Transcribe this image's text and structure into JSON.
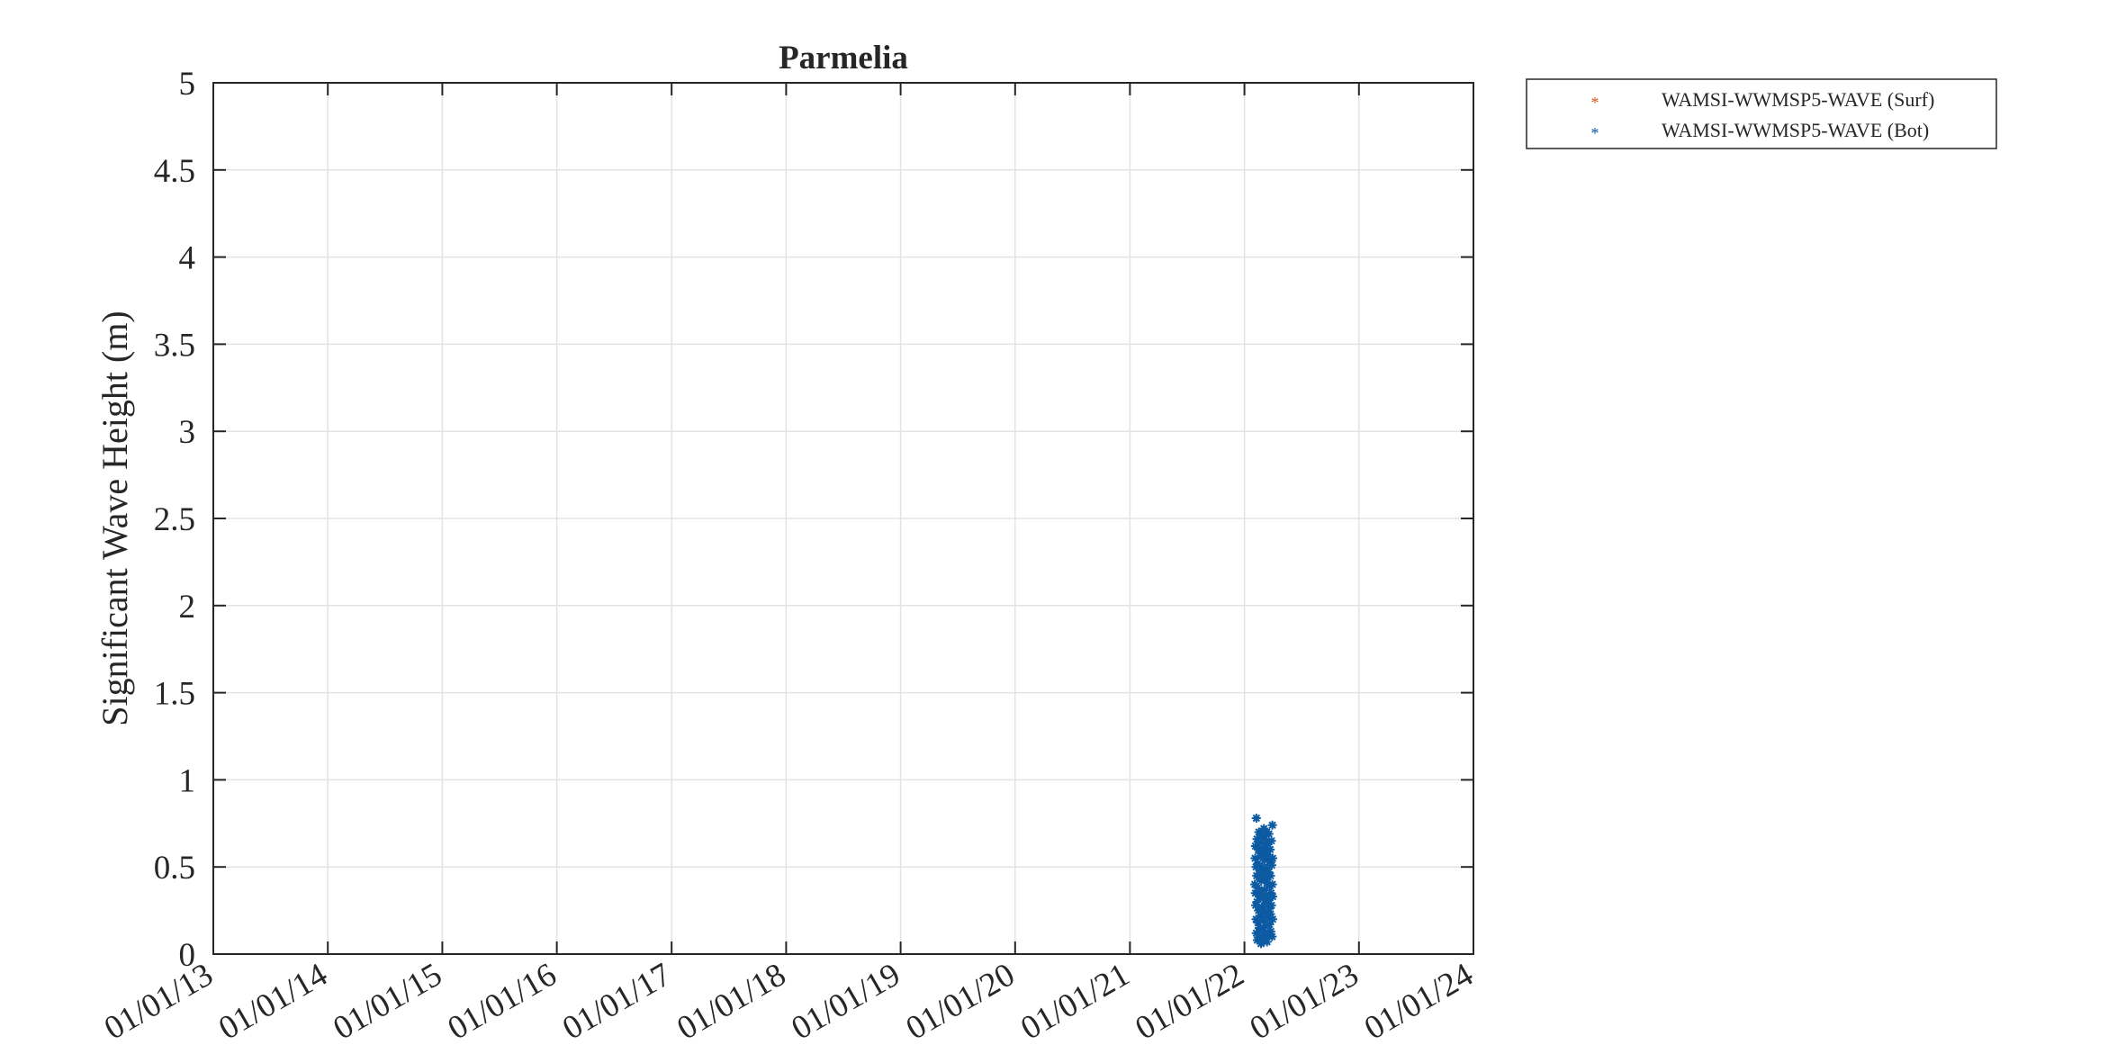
{
  "chart_data": {
    "type": "scatter",
    "title": "Parmelia",
    "xlabel": "",
    "ylabel": "Significant Wave Height (m)",
    "x_scale": "date",
    "xlim": [
      "2013-01-01",
      "2024-01-01"
    ],
    "ylim": [
      0,
      5
    ],
    "x_tick_labels": [
      "01/01/13",
      "01/01/14",
      "01/01/15",
      "01/01/16",
      "01/01/17",
      "01/01/18",
      "01/01/19",
      "01/01/20",
      "01/01/21",
      "01/01/22",
      "01/01/23",
      "01/01/24"
    ],
    "y_tick_labels": [
      "0",
      "0.5",
      "1",
      "1.5",
      "2",
      "2.5",
      "3",
      "3.5",
      "4",
      "4.5",
      "5"
    ],
    "grid": true,
    "legend": "outside-top-right",
    "colors": {
      "surf": "#d95319",
      "bot": "#0b5aa2"
    },
    "series": [
      {
        "name": "WAMSI-WWMSP5-WAVE (Surf)",
        "marker": "asterisk",
        "points": []
      },
      {
        "name": "WAMSI-WWMSP5-WAVE (Bot)",
        "marker": "asterisk",
        "points": [
          [
            "2022-02-03",
            0.4
          ],
          [
            "2022-02-04",
            0.55
          ],
          [
            "2022-02-05",
            0.35
          ],
          [
            "2022-02-05",
            0.62
          ],
          [
            "2022-02-06",
            0.28
          ],
          [
            "2022-02-07",
            0.5
          ],
          [
            "2022-02-07",
            0.2
          ],
          [
            "2022-02-08",
            0.78
          ],
          [
            "2022-02-08",
            0.12
          ],
          [
            "2022-02-09",
            0.45
          ],
          [
            "2022-02-10",
            0.3
          ],
          [
            "2022-02-10",
            0.66
          ],
          [
            "2022-02-11",
            0.08
          ],
          [
            "2022-02-12",
            0.38
          ],
          [
            "2022-02-13",
            0.52
          ],
          [
            "2022-02-13",
            0.18
          ],
          [
            "2022-02-14",
            0.6
          ],
          [
            "2022-02-15",
            0.25
          ],
          [
            "2022-02-16",
            0.44
          ],
          [
            "2022-02-16",
            0.7
          ],
          [
            "2022-02-17",
            0.15
          ],
          [
            "2022-02-18",
            0.33
          ],
          [
            "2022-02-19",
            0.58
          ],
          [
            "2022-02-19",
            0.1
          ],
          [
            "2022-02-20",
            0.48
          ],
          [
            "2022-02-21",
            0.22
          ],
          [
            "2022-02-22",
            0.64
          ],
          [
            "2022-02-22",
            0.36
          ],
          [
            "2022-02-23",
            0.06
          ],
          [
            "2022-02-24",
            0.42
          ],
          [
            "2022-02-25",
            0.56
          ],
          [
            "2022-02-25",
            0.27
          ],
          [
            "2022-02-26",
            0.68
          ],
          [
            "2022-02-27",
            0.14
          ],
          [
            "2022-02-28",
            0.5
          ],
          [
            "2022-03-01",
            0.32
          ],
          [
            "2022-03-01",
            0.61
          ],
          [
            "2022-03-02",
            0.19
          ],
          [
            "2022-03-03",
            0.46
          ],
          [
            "2022-03-04",
            0.72
          ],
          [
            "2022-03-04",
            0.09
          ],
          [
            "2022-03-05",
            0.37
          ],
          [
            "2022-03-06",
            0.54
          ],
          [
            "2022-03-07",
            0.24
          ],
          [
            "2022-03-07",
            0.66
          ],
          [
            "2022-03-08",
            0.12
          ],
          [
            "2022-03-09",
            0.43
          ],
          [
            "2022-03-10",
            0.29
          ],
          [
            "2022-03-10",
            0.59
          ],
          [
            "2022-03-11",
            0.16
          ],
          [
            "2022-03-12",
            0.49
          ],
          [
            "2022-03-13",
            0.7
          ],
          [
            "2022-03-13",
            0.34
          ],
          [
            "2022-03-14",
            0.07
          ],
          [
            "2022-03-15",
            0.41
          ],
          [
            "2022-03-16",
            0.57
          ],
          [
            "2022-03-16",
            0.21
          ],
          [
            "2022-03-17",
            0.63
          ],
          [
            "2022-03-18",
            0.31
          ],
          [
            "2022-03-19",
            0.11
          ],
          [
            "2022-03-19",
            0.47
          ],
          [
            "2022-03-20",
            0.69
          ],
          [
            "2022-03-21",
            0.26
          ],
          [
            "2022-03-22",
            0.53
          ],
          [
            "2022-03-22",
            0.17
          ],
          [
            "2022-03-23",
            0.39
          ],
          [
            "2022-03-24",
            0.6
          ],
          [
            "2022-03-25",
            0.23
          ],
          [
            "2022-03-25",
            0.45
          ],
          [
            "2022-03-26",
            0.13
          ],
          [
            "2022-03-27",
            0.35
          ],
          [
            "2022-03-28",
            0.65
          ],
          [
            "2022-03-28",
            0.28
          ],
          [
            "2022-03-29",
            0.51
          ],
          [
            "2022-03-30",
            0.1
          ],
          [
            "2022-03-31",
            0.4
          ],
          [
            "2022-03-31",
            0.74
          ],
          [
            "2022-04-01",
            0.2
          ],
          [
            "2022-04-01",
            0.55
          ],
          [
            "2022-04-01",
            0.33
          ]
        ]
      }
    ]
  }
}
